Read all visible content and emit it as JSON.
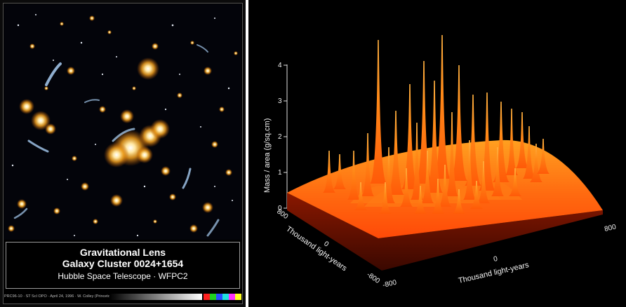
{
  "left_panel": {
    "caption": {
      "title": "Gravitational Lens",
      "subtitle": "Galaxy Cluster 0024+1654",
      "credit": "Hubble Space Telescope · WFPC2"
    },
    "photo_credit": "PRC96-10 · ST ScI OPO · April 24, 1996 · W. Colley (Princeton Univ.), NASA",
    "calibration_colors": [
      "#ff2020",
      "#20d020",
      "#2a4cff",
      "#20e0e0",
      "#ff30ff",
      "#ffff20"
    ]
  },
  "right_panel": {
    "z_axis_label": "Mass / area  (g/sq.cm)",
    "z_ticks": [
      "0",
      "1",
      "2",
      "3",
      "4"
    ],
    "y_axis_label": "Thousand light-years",
    "y_ticks": [
      "800",
      "0",
      "-800"
    ],
    "x_axis_label": "Thousand light-years",
    "x_ticks": [
      "-800",
      "0",
      "800"
    ],
    "colors": {
      "surface_top": "#ffa020",
      "surface_mid": "#ff6a10",
      "surface_dark": "#8a1800",
      "background": "#000000"
    }
  }
}
